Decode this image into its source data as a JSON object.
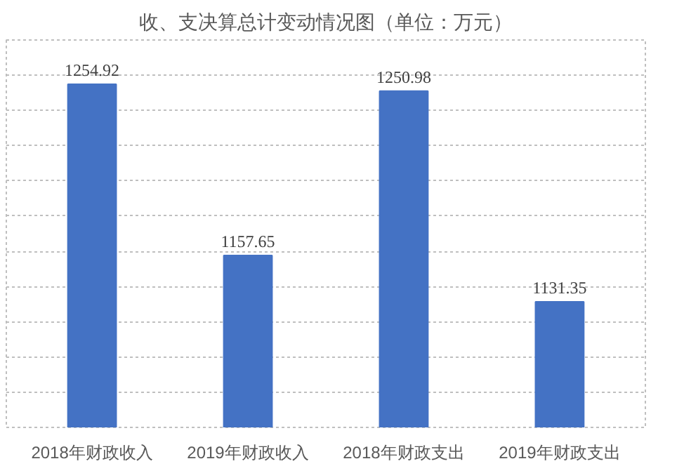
{
  "chart_data": {
    "type": "bar",
    "title": "收、支决算总计变动情况图（单位：万元）",
    "categories": [
      "2018年财政收入",
      "2019年财政收入",
      "2018年财政支出",
      "2019年财政支出"
    ],
    "values": [
      1254.92,
      1157.65,
      1250.98,
      1131.35
    ],
    "color": "#4472c4",
    "ylim": [
      1060,
      1280
    ],
    "yticks": [
      {
        "value": 1080,
        "label": null
      },
      {
        "value": 1100,
        "label": null
      },
      {
        "value": 1120,
        "label": null
      },
      {
        "value": 1140,
        "label": null
      },
      {
        "value": 1160,
        "label": null
      },
      {
        "value": 1180,
        "label": null
      },
      {
        "value": 1200,
        "label": null
      },
      {
        "value": 1220,
        "label": null
      },
      {
        "value": 1240,
        "label": null
      },
      {
        "value": 1260,
        "label": null
      }
    ],
    "grid": "y",
    "tick_labels": "x",
    "data_labels": true
  }
}
